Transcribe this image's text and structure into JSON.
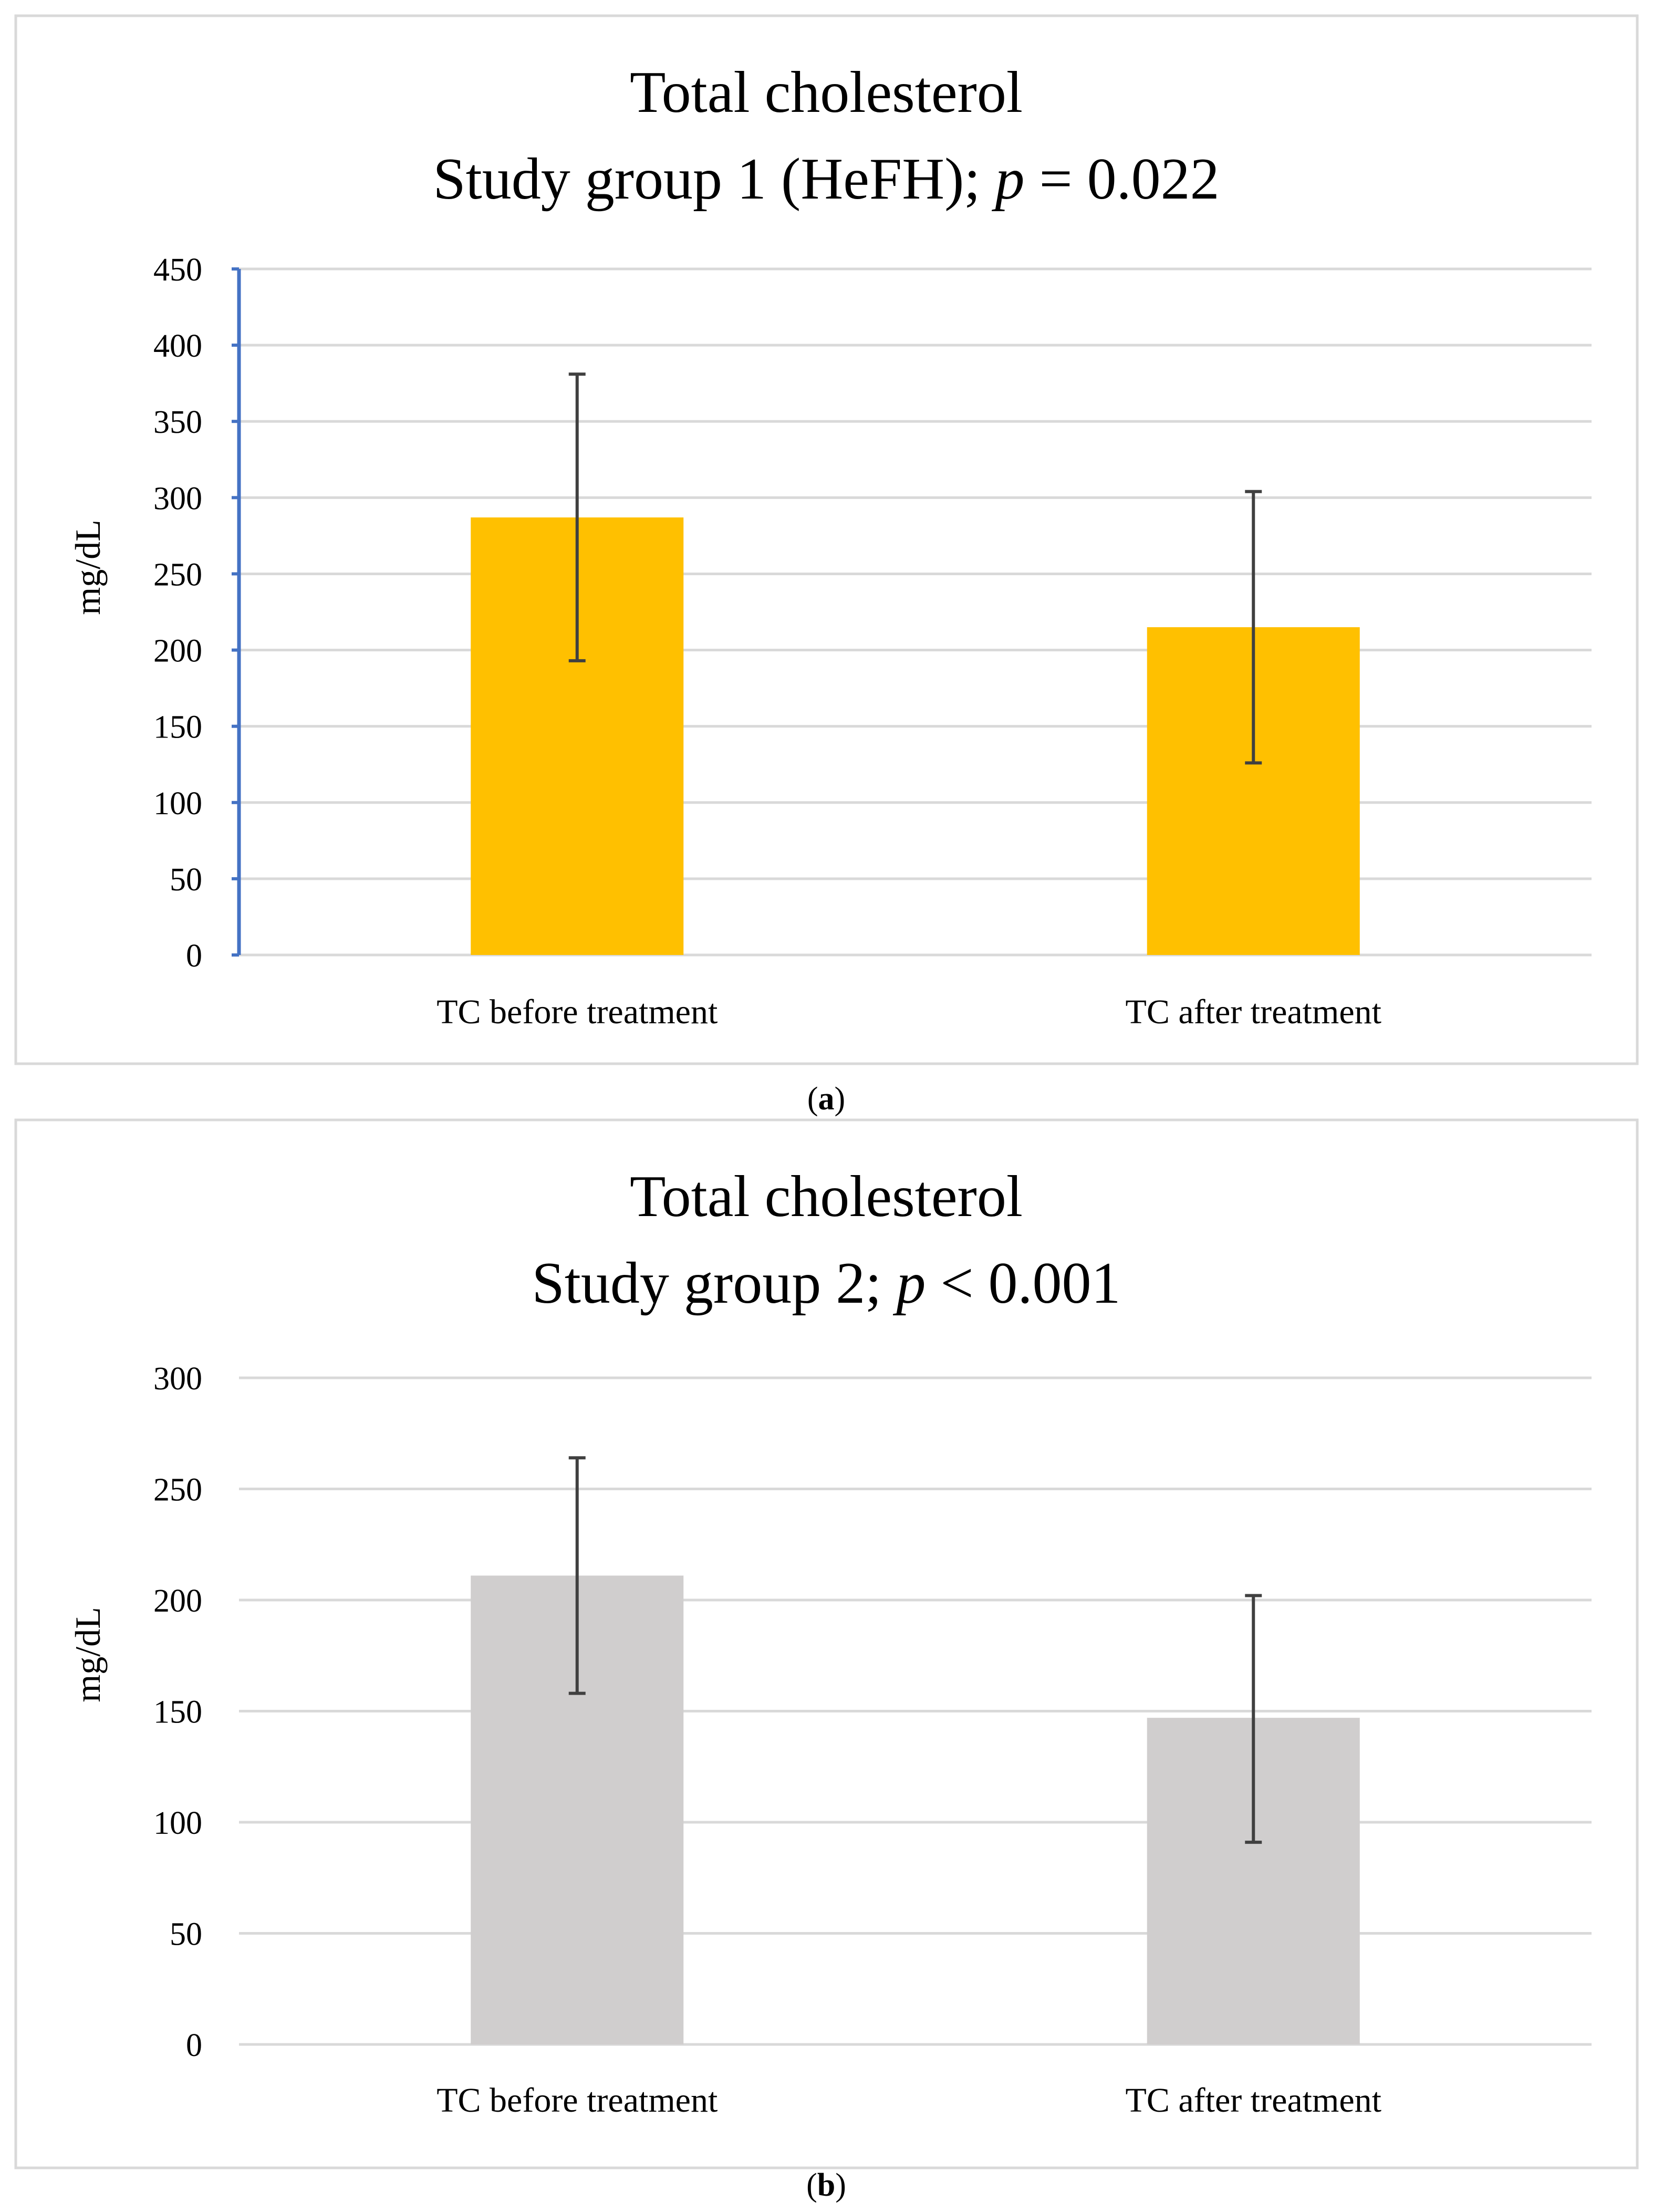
{
  "figure": {
    "captions": [
      "(a)",
      "(b)"
    ],
    "caption_letters": [
      "a",
      "b"
    ]
  },
  "chart_data": [
    {
      "type": "bar",
      "title": "Total cholesterol",
      "subtitle_prefix": "Study group 1 (HeFH); ",
      "subtitle_p": "p",
      "subtitle_suffix": " = 0.022",
      "ylabel": "mg/dL",
      "xlabel": "",
      "categories": [
        "TC before treatment",
        "TC after treatment"
      ],
      "values": [
        287,
        215
      ],
      "error_low": [
        193,
        126
      ],
      "error_high": [
        381,
        304
      ],
      "ylim": [
        0,
        450
      ],
      "yticks": [
        0,
        50,
        100,
        150,
        200,
        250,
        300,
        350,
        400,
        450
      ],
      "grid": true,
      "bar_color": "#ffc000",
      "axis_color": "#4472c4",
      "show_vertical_axis": true
    },
    {
      "type": "bar",
      "title": "Total cholesterol",
      "subtitle_prefix": "Study group 2; ",
      "subtitle_p": "p",
      "subtitle_suffix": " < 0.001",
      "ylabel": "mg/dL",
      "xlabel": "",
      "categories": [
        "TC before treatment",
        "TC after treatment"
      ],
      "values": [
        211,
        147
      ],
      "error_low": [
        158,
        91
      ],
      "error_high": [
        264,
        202
      ],
      "ylim": [
        0,
        300
      ],
      "yticks": [
        0,
        50,
        100,
        150,
        200,
        250,
        300
      ],
      "grid": true,
      "bar_color": "#d0cece",
      "axis_color": "#d9d9d9",
      "show_vertical_axis": false
    }
  ]
}
